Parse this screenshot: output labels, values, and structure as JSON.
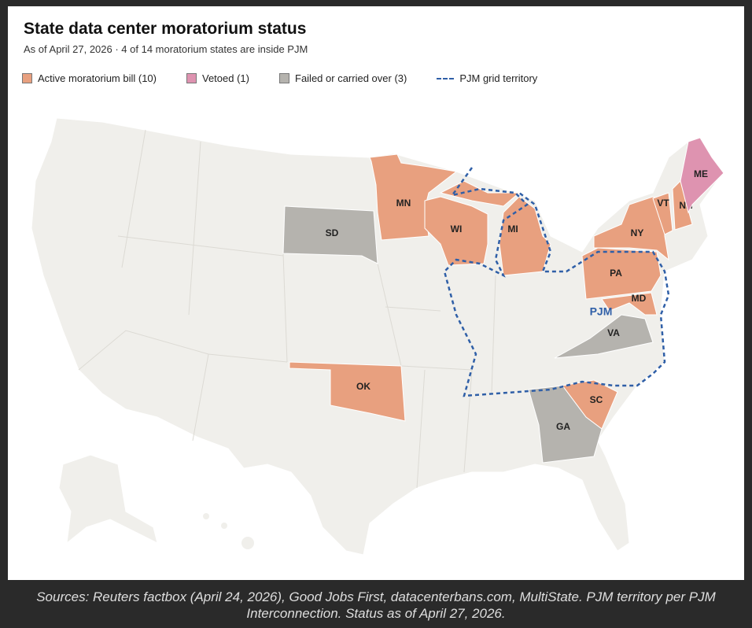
{
  "header": {
    "title": "State data center moratorium status",
    "subtitle": "As of April 27, 2026 · 4 of 14 moratorium states are inside PJM"
  },
  "legend": [
    {
      "label": "Active moratorium bill (10)",
      "color": "#e8a07f"
    },
    {
      "label": "Vetoed (1)",
      "color": "#de93b0"
    },
    {
      "label": "Failed or carried over (3)",
      "color": "#b5b3ae"
    },
    {
      "label": "PJM grid territory",
      "color": "#2f5fa7"
    }
  ],
  "map": {
    "base_color": "#f0efeb",
    "states": [
      {
        "label": "MN",
        "color": "#e8a07f"
      },
      {
        "label": "WI",
        "color": "#e8a07f"
      },
      {
        "label": "MI",
        "color": "#e8a07f"
      },
      {
        "label": "NY",
        "color": "#e8a07f"
      },
      {
        "label": "VT",
        "color": "#e8a07f"
      },
      {
        "label": "NH",
        "color": "#e8a07f"
      },
      {
        "label": "PA",
        "color": "#e8a07f"
      },
      {
        "label": "MD",
        "color": "#e8a07f"
      },
      {
        "label": "OK",
        "color": "#e8a07f"
      },
      {
        "label": "SC",
        "color": "#e8a07f"
      },
      {
        "label": "ME",
        "color": "#de93b0"
      },
      {
        "label": "SD",
        "color": "#b5b3ae"
      },
      {
        "label": "VA",
        "color": "#b5b3ae"
      },
      {
        "label": "GA",
        "color": "#b5b3ae"
      }
    ],
    "pjm_label": "PJM"
  },
  "caption": "Sources: Reuters factbox (April 24, 2026), Good Jobs First, datacenterbans.com, MultiState. PJM territory per PJM Interconnection. Status as of April 27, 2026."
}
